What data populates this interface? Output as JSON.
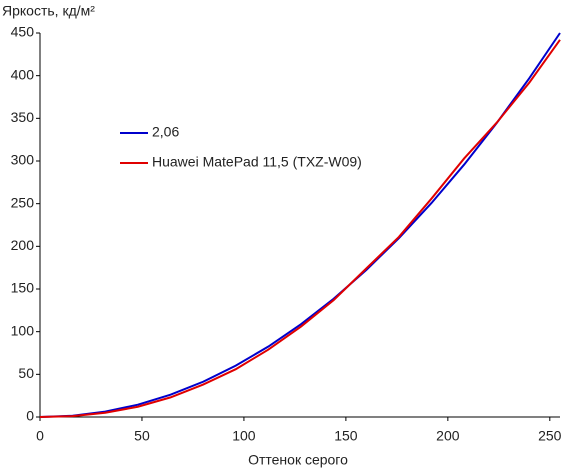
{
  "chart_data": {
    "type": "line",
    "y_label": "Яркость, кд/м²",
    "x_label": "Оттенок серого",
    "x": [
      0,
      16,
      32,
      48,
      64,
      80,
      96,
      112,
      128,
      144,
      160,
      176,
      192,
      208,
      224,
      240,
      255
    ],
    "series": [
      {
        "name": "2,06",
        "color": "#0000cc",
        "values": [
          0,
          1.5,
          6.3,
          14.4,
          26.1,
          41.3,
          60.2,
          82.6,
          108.8,
          138.6,
          172.3,
          209.6,
          250.8,
          295.8,
          344.6,
          397.2,
          450
        ]
      },
      {
        "name": "Huawei MatePad 11,5 (TXZ-W09)",
        "color": "#e00000",
        "values": [
          0,
          1,
          5,
          12,
          23,
          38,
          56,
          79,
          106,
          137,
          174,
          211,
          256,
          303,
          345,
          392,
          442
        ]
      }
    ],
    "xlim": [
      0,
      255
    ],
    "ylim": [
      0,
      450
    ],
    "xticks": [
      0,
      50,
      100,
      150,
      200,
      250
    ],
    "yticks": [
      0,
      50,
      100,
      150,
      200,
      250,
      300,
      350,
      400,
      450
    ],
    "grid": false
  }
}
